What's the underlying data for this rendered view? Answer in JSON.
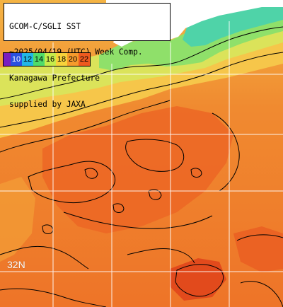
{
  "title_lines": [
    "GCOM-C/SGLI SST",
    "~2025/04/19 (UTC) Week Comp.",
    "Kanagawa Prefecture",
    "supplied by JAXA"
  ],
  "legend": {
    "labels": [
      "10",
      "12",
      "14",
      "16",
      "18",
      "20",
      "22"
    ],
    "colors": [
      "#7a1fbf",
      "#2950e0",
      "#21b7e6",
      "#4fdc6a",
      "#c6ec4a",
      "#f7d23a",
      "#f59a2c",
      "#ee5a1f"
    ]
  },
  "grid_label": "32N",
  "colors": {
    "land": "#ffffff",
    "grid": "#ffffff",
    "contour": "#000000",
    "sst_warm": "#f07a2a",
    "sst_hot": "#e6501e",
    "sst_mid": "#f5a93c",
    "sst_cool": "#d9e15a",
    "sst_cold": "#6fdc74",
    "sst_coldest": "#2fc9b0"
  }
}
